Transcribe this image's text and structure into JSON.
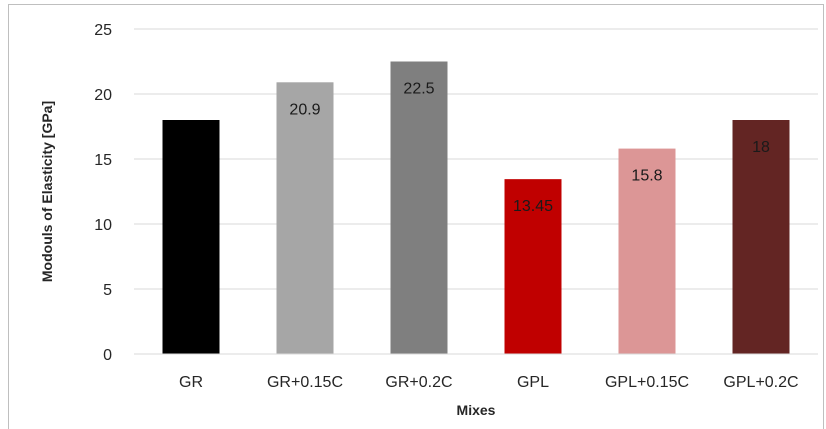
{
  "chart_data": {
    "type": "bar",
    "title": "",
    "xlabel": "Mixes",
    "ylabel": "Modouls of Elasticity [GPa]",
    "categories": [
      "GR",
      "GR+0.15C",
      "GR+0.2C",
      "GPL",
      "GPL+0.15C",
      "GPL+0.2C"
    ],
    "values": [
      18,
      20.9,
      22.5,
      13.45,
      15.8,
      18
    ],
    "data_labels": [
      "",
      "20.9",
      "22.5",
      "13.45",
      "15.8",
      "18"
    ],
    "colors": [
      "#000000",
      "#a6a6a6",
      "#7f7f7f",
      "#c00000",
      "#dc9696",
      "#632523"
    ],
    "ylim": [
      0,
      25
    ],
    "yticks": [
      0,
      5,
      10,
      15,
      20,
      25
    ],
    "grid": true,
    "legend": "none"
  }
}
